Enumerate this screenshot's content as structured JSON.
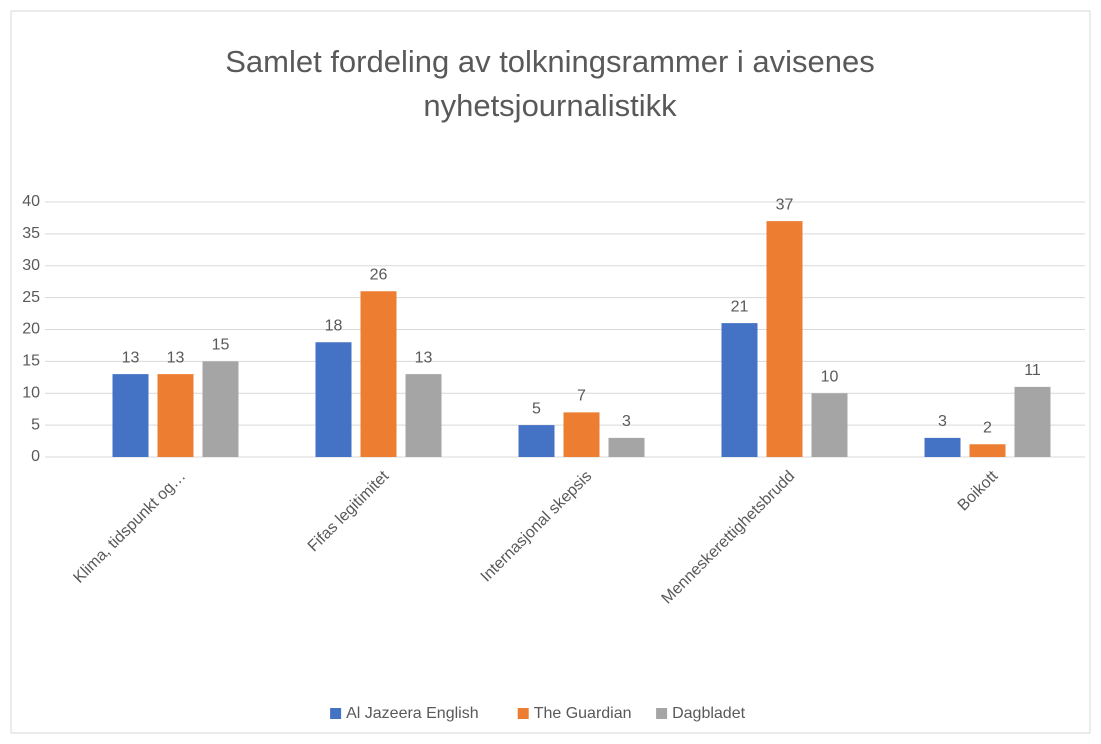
{
  "chart_data": {
    "type": "bar",
    "title": "Samlet fordeling av tolkningsrammer i avisenes nyhetsjournalistikk",
    "categories": [
      "Klima, tidspunkt og…",
      "Fifas legitimitet",
      "Internasjonal skepsis",
      "Menneskerettighetsbrudd",
      "Boikott"
    ],
    "series": [
      {
        "name": "Al Jazeera English",
        "color": "#4472c4",
        "values": [
          13,
          18,
          5,
          21,
          3
        ]
      },
      {
        "name": "The Guardian",
        "color": "#ed7d31",
        "values": [
          13,
          26,
          7,
          37,
          2
        ]
      },
      {
        "name": "Dagbladet",
        "color": "#a5a5a5",
        "values": [
          15,
          13,
          3,
          10,
          11
        ]
      }
    ],
    "ylim": [
      0,
      40
    ],
    "yticks": [
      0,
      5,
      10,
      15,
      20,
      25,
      30,
      35,
      40
    ],
    "grid": true,
    "legend": "bottom"
  }
}
